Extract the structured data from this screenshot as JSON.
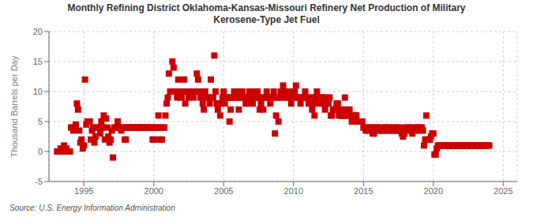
{
  "chart_data": {
    "type": "scatter",
    "title": "Monthly Refining District Oklahoma-Kansas-Missouri Refinery Net Production of Military\nKerosene-Type Jet Fuel",
    "ylabel": "Thousand Barrels per Day",
    "annotations": [
      "Source: U.S. Energy Information Administration"
    ],
    "xlim": [
      1992.5,
      2026.0
    ],
    "ylim": [
      -5,
      20
    ],
    "xticks": [
      1995,
      2000,
      2005,
      2010,
      2015,
      2020,
      2025
    ],
    "yticks": [
      -5,
      0,
      5,
      10,
      15,
      20
    ],
    "grid": true,
    "color": "#cc0000",
    "marker": "square",
    "x": [
      1993.08,
      1993.17,
      1993.25,
      1993.33,
      1993.42,
      1993.5,
      1993.58,
      1993.67,
      1993.75,
      1993.83,
      1993.92,
      1994.0,
      1994.08,
      1994.17,
      1994.25,
      1994.33,
      1994.42,
      1994.5,
      1994.58,
      1994.67,
      1994.75,
      1994.83,
      1994.92,
      1995.0,
      1995.08,
      1995.17,
      1995.25,
      1995.33,
      1995.42,
      1995.5,
      1995.58,
      1995.67,
      1995.75,
      1995.83,
      1995.92,
      1996.0,
      1996.08,
      1996.17,
      1996.25,
      1996.33,
      1996.42,
      1996.5,
      1996.58,
      1996.67,
      1996.75,
      1996.83,
      1996.92,
      1997.0,
      1997.08,
      1997.17,
      1997.25,
      1997.33,
      1997.42,
      1997.5,
      1997.58,
      1997.67,
      1997.75,
      1997.83,
      1997.92,
      1998.0,
      1998.08,
      1998.17,
      1998.25,
      1998.33,
      1998.42,
      1998.5,
      1998.58,
      1998.67,
      1998.75,
      1998.83,
      1998.92,
      1999.0,
      1999.08,
      1999.17,
      1999.25,
      1999.33,
      1999.42,
      1999.5,
      1999.58,
      1999.67,
      1999.75,
      1999.83,
      1999.92,
      2000.0,
      2000.08,
      2000.17,
      2000.25,
      2000.33,
      2000.42,
      2000.5,
      2000.58,
      2000.67,
      2000.75,
      2000.83,
      2000.92,
      2001.0,
      2001.08,
      2001.17,
      2001.25,
      2001.33,
      2001.42,
      2001.5,
      2001.58,
      2001.67,
      2001.75,
      2001.83,
      2001.92,
      2002.0,
      2002.08,
      2002.17,
      2002.25,
      2002.33,
      2002.42,
      2002.5,
      2002.58,
      2002.67,
      2002.75,
      2002.83,
      2002.92,
      2003.0,
      2003.08,
      2003.17,
      2003.25,
      2003.33,
      2003.42,
      2003.5,
      2003.58,
      2003.67,
      2003.75,
      2003.83,
      2003.92,
      2004.0,
      2004.08,
      2004.17,
      2004.25,
      2004.33,
      2004.42,
      2004.5,
      2004.58,
      2004.67,
      2004.75,
      2004.83,
      2004.92,
      2005.0,
      2005.08,
      2005.17,
      2005.25,
      2005.33,
      2005.42,
      2005.5,
      2005.58,
      2005.67,
      2005.75,
      2005.83,
      2005.92,
      2006.0,
      2006.08,
      2006.17,
      2006.25,
      2006.33,
      2006.42,
      2006.5,
      2006.58,
      2006.67,
      2006.75,
      2006.83,
      2006.92,
      2007.0,
      2007.08,
      2007.17,
      2007.25,
      2007.33,
      2007.42,
      2007.5,
      2007.58,
      2007.67,
      2007.75,
      2007.83,
      2007.92,
      2008.0,
      2008.08,
      2008.17,
      2008.25,
      2008.33,
      2008.42,
      2008.5,
      2008.58,
      2008.67,
      2008.75,
      2008.83,
      2008.92,
      2009.0,
      2009.08,
      2009.17,
      2009.25,
      2009.33,
      2009.42,
      2009.5,
      2009.58,
      2009.67,
      2009.75,
      2009.83,
      2009.92,
      2010.0,
      2010.08,
      2010.17,
      2010.25,
      2010.33,
      2010.42,
      2010.5,
      2010.58,
      2010.67,
      2010.75,
      2010.83,
      2010.92,
      2011.0,
      2011.08,
      2011.17,
      2011.25,
      2011.33,
      2011.42,
      2011.5,
      2011.58,
      2011.67,
      2011.75,
      2011.83,
      2011.92,
      2012.0,
      2012.08,
      2012.17,
      2012.25,
      2012.33,
      2012.42,
      2012.5,
      2012.58,
      2012.67,
      2012.75,
      2012.83,
      2012.92,
      2013.0,
      2013.08,
      2013.17,
      2013.25,
      2013.33,
      2013.42,
      2013.5,
      2013.58,
      2013.67,
      2013.75,
      2013.83,
      2013.92,
      2014.0,
      2014.08,
      2014.17,
      2014.25,
      2014.33,
      2014.42,
      2014.5,
      2014.58,
      2014.67,
      2014.75,
      2014.83,
      2014.92,
      2015.0,
      2015.08,
      2015.17,
      2015.25,
      2015.33,
      2015.42,
      2015.5,
      2015.58,
      2015.67,
      2015.75,
      2015.83,
      2015.92,
      2016.0,
      2016.08,
      2016.17,
      2016.25,
      2016.33,
      2016.42,
      2016.5,
      2016.58,
      2016.67,
      2016.75,
      2016.83,
      2016.92,
      2017.0,
      2017.08,
      2017.17,
      2017.25,
      2017.33,
      2017.42,
      2017.5,
      2017.58,
      2017.67,
      2017.75,
      2017.83,
      2017.92,
      2018.0,
      2018.08,
      2018.17,
      2018.25,
      2018.33,
      2018.42,
      2018.5,
      2018.58,
      2018.67,
      2018.75,
      2018.83,
      2018.92,
      2019.0,
      2019.08,
      2019.17,
      2019.25,
      2019.33,
      2019.42,
      2019.5,
      2019.58,
      2019.67,
      2019.75,
      2019.83,
      2019.92,
      2020.0,
      2020.08,
      2020.17,
      2020.25,
      2020.33,
      2020.42,
      2020.5,
      2020.58,
      2020.67,
      2020.75,
      2020.83,
      2020.92,
      2021.0,
      2021.08,
      2021.17,
      2021.25,
      2021.33,
      2021.42,
      2021.5,
      2021.58,
      2021.67,
      2021.75,
      2021.83,
      2021.92,
      2022.0,
      2022.08,
      2022.17,
      2022.25,
      2022.33,
      2022.42,
      2022.5,
      2022.58,
      2022.67,
      2022.75,
      2022.83,
      2022.92,
      2023.0,
      2023.08,
      2023.17,
      2023.25,
      2023.33,
      2023.42,
      2023.5,
      2023.58,
      2023.67,
      2023.75,
      2023.83,
      2023.92,
      2024.0
    ],
    "values": [
      0.0,
      0.0,
      0.0,
      0.5,
      0.0,
      0.0,
      1.0,
      0.0,
      0.5,
      0.0,
      0.0,
      0.0,
      4.0,
      4.0,
      3.5,
      4.0,
      4.5,
      8.0,
      7.0,
      3.5,
      1.5,
      2.0,
      0.5,
      1.0,
      12.0,
      4.5,
      5.0,
      5.0,
      5.0,
      2.0,
      3.5,
      4.0,
      1.5,
      2.5,
      4.0,
      4.0,
      4.0,
      3.0,
      5.0,
      4.0,
      6.0,
      2.0,
      5.5,
      4.0,
      2.5,
      1.5,
      2.0,
      3.5,
      -1.0,
      4.0,
      4.0,
      4.0,
      5.0,
      4.0,
      4.0,
      3.5,
      4.0,
      4.0,
      2.0,
      2.0,
      4.0,
      4.0,
      4.0,
      4.0,
      4.0,
      4.0,
      4.0,
      4.0,
      4.0,
      4.0,
      4.0,
      4.0,
      4.0,
      4.0,
      4.0,
      4.0,
      4.0,
      4.0,
      4.0,
      4.0,
      4.0,
      4.0,
      2.0,
      2.0,
      4.0,
      4.0,
      4.0,
      6.0,
      2.0,
      4.0,
      2.0,
      4.0,
      4.0,
      6.0,
      8.0,
      9.0,
      13.0,
      10.0,
      10.0,
      15.0,
      14.0,
      10.0,
      10.0,
      9.0,
      12.0,
      10.0,
      10.0,
      9.0,
      10.0,
      12.0,
      8.0,
      10.0,
      10.0,
      9.0,
      10.0,
      10.0,
      10.0,
      9.0,
      10.0,
      10.0,
      13.0,
      12.0,
      10.0,
      9.0,
      10.0,
      8.0,
      7.0,
      10.0,
      9.0,
      9.0,
      9.0,
      8.0,
      12.0,
      9.0,
      9.0,
      16.0,
      10.0,
      8.0,
      7.0,
      8.0,
      6.0,
      8.0,
      9.0,
      10.0,
      8.0,
      9.0,
      9.0,
      9.0,
      5.0,
      7.0,
      9.0,
      9.0,
      10.0,
      9.0,
      9.0,
      10.0,
      7.0,
      9.0,
      9.0,
      10.0,
      9.0,
      9.0,
      8.0,
      8.0,
      9.0,
      10.0,
      9.0,
      9.0,
      8.0,
      10.0,
      9.0,
      9.0,
      10.0,
      9.0,
      7.0,
      8.0,
      9.0,
      7.0,
      9.0,
      9.0,
      10.0,
      9.0,
      9.0,
      8.0,
      9.0,
      9.0,
      10.0,
      3.0,
      6.0,
      9.0,
      5.0,
      9.0,
      10.0,
      9.0,
      11.0,
      10.0,
      10.0,
      9.0,
      10.0,
      9.0,
      10.0,
      8.0,
      9.0,
      10.0,
      10.0,
      11.0,
      9.0,
      9.0,
      9.0,
      8.0,
      9.0,
      9.0,
      9.0,
      10.0,
      9.0,
      9.0,
      8.0,
      9.0,
      9.0,
      7.0,
      8.0,
      6.0,
      9.0,
      10.0,
      9.0,
      8.0,
      9.0,
      9.0,
      8.0,
      9.0,
      7.0,
      8.0,
      9.0,
      8.0,
      9.0,
      6.0,
      6.0,
      7.0,
      7.0,
      7.0,
      8.0,
      8.0,
      6.0,
      7.0,
      6.0,
      6.0,
      6.0,
      9.0,
      7.0,
      6.0,
      6.0,
      7.0,
      6.0,
      5.0,
      5.0,
      6.0,
      6.0,
      6.0,
      5.0,
      5.0,
      5.0,
      5.0,
      5.0,
      4.0,
      4.0,
      3.5,
      3.5,
      4.0,
      4.0,
      3.5,
      4.0,
      3.0,
      3.0,
      4.0,
      4.0,
      4.0,
      3.5,
      4.0,
      3.5,
      3.5,
      3.5,
      4.0,
      4.0,
      4.0,
      3.5,
      3.5,
      4.0,
      4.0,
      3.5,
      3.5,
      4.0,
      3.5,
      4.0,
      3.5,
      4.0,
      3.5,
      3.0,
      2.5,
      3.0,
      4.0,
      3.5,
      4.0,
      4.0,
      3.5,
      4.0,
      3.0,
      3.5,
      4.0,
      3.5,
      4.0,
      4.0,
      3.5,
      4.0,
      4.0,
      3.5,
      1.0,
      2.0,
      6.0,
      2.0,
      2.0,
      2.0,
      2.5,
      3.0,
      3.0,
      -0.5,
      -0.5,
      0.5,
      1.0,
      1.0,
      1.0,
      1.0,
      1.0,
      1.0,
      1.0,
      1.0,
      1.0,
      1.0,
      1.0,
      1.0,
      1.0,
      1.0,
      1.0,
      1.0,
      1.0,
      1.0,
      1.0,
      1.0,
      1.0,
      1.0,
      1.0,
      1.0,
      1.0,
      1.0,
      1.0,
      1.0,
      1.0,
      1.0,
      1.0,
      1.0,
      1.0,
      1.0,
      1.0,
      1.0,
      1.0,
      1.0,
      1.0,
      1.0,
      1.0,
      1.0,
      1.0,
      1.0,
      1.0
    ]
  }
}
